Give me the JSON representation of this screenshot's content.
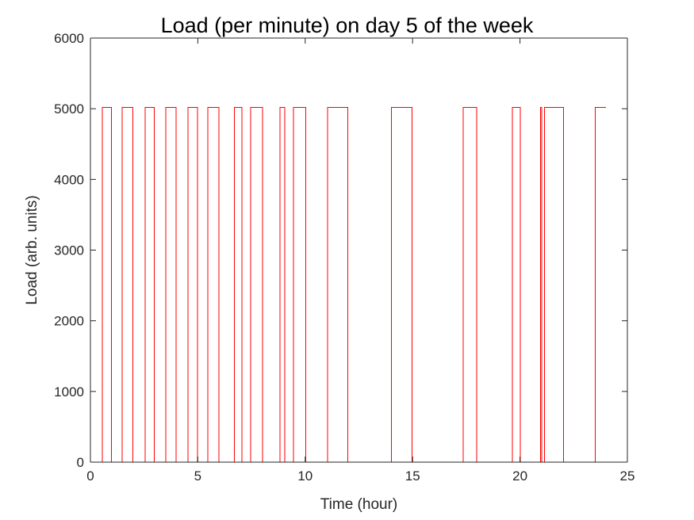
{
  "chart_data": {
    "type": "line",
    "title": "Load (per minute) on day 5 of the week",
    "xlabel": "Time (hour)",
    "ylabel": "Load (arb. units)",
    "xlim": [
      0,
      25
    ],
    "ylim": [
      0,
      6000
    ],
    "xticks": [
      0,
      5,
      10,
      15,
      20,
      25
    ],
    "yticks": [
      0,
      1000,
      2000,
      3000,
      4000,
      5000,
      6000
    ],
    "xtick_labels": [
      "0",
      "5",
      "10",
      "15",
      "20",
      "25"
    ],
    "ytick_labels": [
      "0",
      "1000",
      "2000",
      "3000",
      "4000",
      "5000",
      "6000"
    ],
    "grid": false,
    "box": true,
    "series": [
      {
        "color": "#ff0000",
        "step": true,
        "x": [
          0,
          0.55,
          0.98,
          1.47,
          1.97,
          2.55,
          2.98,
          3.5,
          3.98,
          4.55,
          4.98,
          5.47,
          5.98,
          6.7,
          7.05,
          7.45,
          8.02,
          8.82,
          9.05,
          9.45,
          10.02,
          11.05,
          11.98,
          14.02,
          14.05,
          14.98,
          17.35,
          17.98,
          19.65,
          20.02,
          20.95,
          21.02,
          21.15,
          22.02,
          23.5,
          24.0
        ],
        "y": [
          0,
          5020,
          0,
          5020,
          0,
          5020,
          0,
          5020,
          0,
          5020,
          0,
          5020,
          0,
          5020,
          0,
          5020,
          0,
          5020,
          0,
          5020,
          0,
          5020,
          0,
          5020,
          5020,
          0,
          5020,
          0,
          5020,
          0,
          5020,
          0,
          5020,
          0,
          5020,
          5020
        ]
      }
    ]
  }
}
